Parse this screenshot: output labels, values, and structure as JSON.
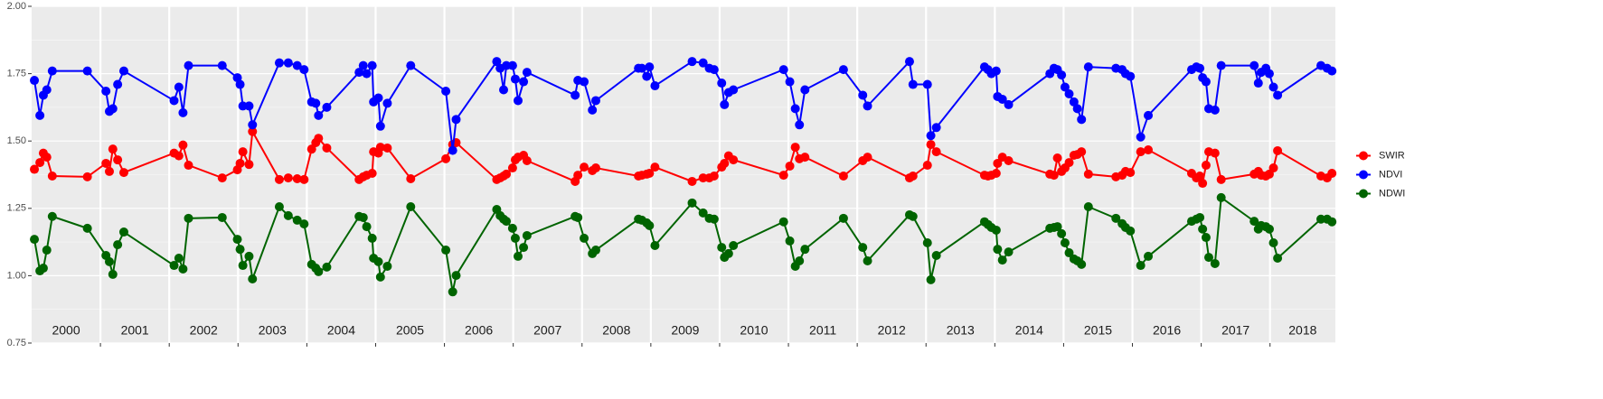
{
  "chart_data": {
    "type": "line",
    "x": [
      2000.04,
      2000.12,
      2000.17,
      2000.22,
      2000.3,
      2000.81,
      2001.08,
      2001.13,
      2001.18,
      2001.25,
      2001.34,
      2002.07,
      2002.14,
      2002.2,
      2002.28,
      2002.77,
      2002.99,
      2003.03,
      2003.07,
      2003.16,
      2003.21,
      2003.6,
      2003.73,
      2003.86,
      2003.96,
      2004.07,
      2004.13,
      2004.17,
      2004.29,
      2004.76,
      2004.82,
      2004.87,
      2004.95,
      2004.97,
      2005.04,
      2005.07,
      2005.17,
      2005.51,
      2006.02,
      2006.12,
      2006.17,
      2006.76,
      2006.81,
      2006.86,
      2006.9,
      2006.99,
      2007.03,
      2007.07,
      2007.15,
      2007.2,
      2007.9,
      2007.94,
      2008.03,
      2008.15,
      2008.2,
      2008.82,
      2008.87,
      2008.94,
      2008.98,
      2009.06,
      2009.6,
      2009.76,
      2009.85,
      2009.92,
      2010.03,
      2010.07,
      2010.13,
      2010.2,
      2010.93,
      2011.02,
      2011.1,
      2011.16,
      2011.24,
      2011.8,
      2012.08,
      2012.15,
      2012.76,
      2012.81,
      2013.02,
      2013.07,
      2013.15,
      2013.85,
      2013.9,
      2013.95,
      2014.02,
      2014.04,
      2014.11,
      2014.2,
      2014.8,
      2014.86,
      2014.91,
      2014.97,
      2015.02,
      2015.08,
      2015.15,
      2015.2,
      2015.26,
      2015.36,
      2015.76,
      2015.85,
      2015.9,
      2015.97,
      2016.12,
      2016.23,
      2016.86,
      2016.93,
      2016.98,
      2017.02,
      2017.07,
      2017.11,
      2017.2,
      2017.29,
      2017.77,
      2017.83,
      2017.87,
      2017.94,
      2017.99,
      2018.05,
      2018.11,
      2018.74,
      2018.83,
      2018.9
    ],
    "series": [
      {
        "name": "SWIR",
        "color": "#ff0000",
        "values": [
          1.395,
          1.42,
          1.455,
          1.44,
          1.37,
          1.367,
          1.417,
          1.387,
          1.47,
          1.43,
          1.383,
          1.455,
          1.445,
          1.485,
          1.41,
          1.363,
          1.393,
          1.417,
          1.46,
          1.413,
          1.535,
          1.357,
          1.363,
          1.36,
          1.357,
          1.47,
          1.494,
          1.51,
          1.474,
          1.357,
          1.367,
          1.373,
          1.38,
          1.46,
          1.455,
          1.477,
          1.474,
          1.36,
          1.434,
          1.487,
          1.494,
          1.357,
          1.363,
          1.37,
          1.377,
          1.4,
          1.43,
          1.44,
          1.447,
          1.427,
          1.35,
          1.373,
          1.403,
          1.39,
          1.4,
          1.37,
          1.373,
          1.377,
          1.38,
          1.403,
          1.35,
          1.363,
          1.363,
          1.37,
          1.403,
          1.417,
          1.445,
          1.43,
          1.373,
          1.407,
          1.477,
          1.434,
          1.44,
          1.37,
          1.427,
          1.44,
          1.363,
          1.37,
          1.41,
          1.487,
          1.46,
          1.373,
          1.37,
          1.373,
          1.38,
          1.417,
          1.44,
          1.427,
          1.377,
          1.373,
          1.437,
          1.387,
          1.4,
          1.42,
          1.447,
          1.45,
          1.46,
          1.377,
          1.367,
          1.373,
          1.387,
          1.383,
          1.46,
          1.467,
          1.38,
          1.363,
          1.37,
          1.343,
          1.41,
          1.46,
          1.455,
          1.357,
          1.377,
          1.387,
          1.373,
          1.37,
          1.377,
          1.4,
          1.464,
          1.37,
          1.363,
          1.38
        ]
      },
      {
        "name": "NDVI",
        "color": "#0000ff",
        "values": [
          1.725,
          1.595,
          1.67,
          1.69,
          1.76,
          1.76,
          1.685,
          1.61,
          1.62,
          1.71,
          1.76,
          1.65,
          1.7,
          1.605,
          1.78,
          1.78,
          1.735,
          1.71,
          1.63,
          1.63,
          1.56,
          1.79,
          1.79,
          1.78,
          1.765,
          1.645,
          1.64,
          1.595,
          1.625,
          1.755,
          1.78,
          1.75,
          1.78,
          1.645,
          1.66,
          1.555,
          1.64,
          1.78,
          1.685,
          1.465,
          1.58,
          1.795,
          1.77,
          1.69,
          1.78,
          1.78,
          1.73,
          1.65,
          1.72,
          1.755,
          1.67,
          1.725,
          1.72,
          1.615,
          1.65,
          1.77,
          1.77,
          1.74,
          1.775,
          1.705,
          1.795,
          1.79,
          1.77,
          1.765,
          1.715,
          1.635,
          1.68,
          1.69,
          1.765,
          1.72,
          1.62,
          1.56,
          1.69,
          1.765,
          1.67,
          1.63,
          1.795,
          1.71,
          1.71,
          1.52,
          1.55,
          1.775,
          1.765,
          1.75,
          1.76,
          1.665,
          1.655,
          1.635,
          1.75,
          1.77,
          1.765,
          1.745,
          1.7,
          1.675,
          1.645,
          1.62,
          1.58,
          1.775,
          1.77,
          1.765,
          1.75,
          1.74,
          1.515,
          1.595,
          1.765,
          1.775,
          1.77,
          1.735,
          1.72,
          1.62,
          1.615,
          1.78,
          1.78,
          1.715,
          1.755,
          1.77,
          1.75,
          1.7,
          1.67,
          1.78,
          1.77,
          1.76
        ]
      },
      {
        "name": "NDWI",
        "color": "#006400",
        "values": [
          1.135,
          1.018,
          1.028,
          1.095,
          1.22,
          1.176,
          1.075,
          1.052,
          1.005,
          1.115,
          1.162,
          1.038,
          1.065,
          1.025,
          1.213,
          1.216,
          1.135,
          1.098,
          1.038,
          1.072,
          0.988,
          1.256,
          1.223,
          1.206,
          1.192,
          1.042,
          1.028,
          1.015,
          1.032,
          1.22,
          1.216,
          1.182,
          1.139,
          1.065,
          1.052,
          0.995,
          1.035,
          1.256,
          1.095,
          0.94,
          1.001,
          1.246,
          1.223,
          1.21,
          1.202,
          1.176,
          1.139,
          1.072,
          1.105,
          1.149,
          1.22,
          1.216,
          1.139,
          1.082,
          1.095,
          1.21,
          1.206,
          1.196,
          1.186,
          1.112,
          1.27,
          1.233,
          1.213,
          1.21,
          1.105,
          1.068,
          1.082,
          1.112,
          1.2,
          1.129,
          1.035,
          1.055,
          1.098,
          1.213,
          1.105,
          1.055,
          1.226,
          1.22,
          1.122,
          0.985,
          1.075,
          1.2,
          1.19,
          1.179,
          1.169,
          1.098,
          1.058,
          1.088,
          1.176,
          1.179,
          1.182,
          1.156,
          1.122,
          1.085,
          1.062,
          1.055,
          1.042,
          1.256,
          1.213,
          1.193,
          1.179,
          1.166,
          1.038,
          1.072,
          1.202,
          1.21,
          1.216,
          1.173,
          1.142,
          1.068,
          1.045,
          1.29,
          1.202,
          1.173,
          1.186,
          1.182,
          1.173,
          1.122,
          1.065,
          1.21,
          1.21,
          1.2
        ]
      }
    ],
    "xlim": [
      2000,
      2018.95
    ],
    "xticks": [
      2001,
      2002,
      2003,
      2004,
      2005,
      2006,
      2007,
      2008,
      2009,
      2010,
      2011,
      2012,
      2013,
      2014,
      2015,
      2016,
      2017,
      2018
    ],
    "year_labels": [
      "2000",
      "2001",
      "2002",
      "2003",
      "2004",
      "2005",
      "2006",
      "2007",
      "2008",
      "2009",
      "2010",
      "2011",
      "2012",
      "2013",
      "2014",
      "2015",
      "2016",
      "2017",
      "2018"
    ],
    "ylim": [
      0.75,
      2.0
    ],
    "yticks": [
      {
        "value": 0.75,
        "label": "0.75"
      },
      {
        "value": 1.0,
        "label": "1.00"
      },
      {
        "value": 1.25,
        "label": "1.25"
      },
      {
        "value": 1.5,
        "label": "1.50"
      },
      {
        "value": 1.75,
        "label": "1.75"
      },
      {
        "value": 2.0,
        "label": "2.00"
      }
    ],
    "grid": true,
    "minor_grid": true,
    "legend": "right"
  }
}
